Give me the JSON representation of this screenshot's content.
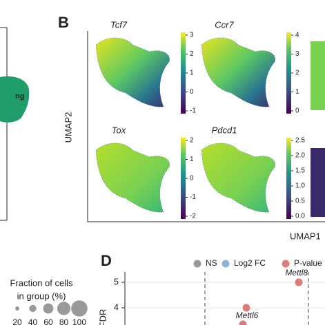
{
  "left_panel": {
    "partial_label": "ng"
  },
  "panel_b": {
    "label": "B",
    "y_axis_label": "UMAP2",
    "x_axis_label": "UMAP1",
    "plots": [
      {
        "gene": "Tcf7",
        "colorbar_ticks": [
          "3",
          "2",
          "1",
          "0",
          "-1"
        ]
      },
      {
        "gene": "Ccr7",
        "colorbar_ticks": [
          "4",
          "3",
          "2",
          "1",
          "0"
        ]
      },
      {
        "gene": "Tox",
        "colorbar_ticks": [
          "2",
          "1",
          "0",
          "-1",
          "-2"
        ]
      },
      {
        "gene": "Pdcd1",
        "colorbar_ticks": [
          "2.5",
          "2.0",
          "1.5",
          "1.0",
          "0.5",
          "0.0"
        ]
      }
    ]
  },
  "dot_legend": {
    "title_line1": "Fraction of cells",
    "title_line2": "in group (%)",
    "sizes": [
      "20",
      "40",
      "60",
      "80",
      "100"
    ]
  },
  "panel_d": {
    "label": "D",
    "legend": [
      "NS",
      "Log2 FC",
      "P-value"
    ],
    "y_axis_label": "FDR",
    "y_ticks": [
      "5",
      "4"
    ],
    "point_labels": [
      "Mettl8",
      "Mettl6"
    ]
  }
}
